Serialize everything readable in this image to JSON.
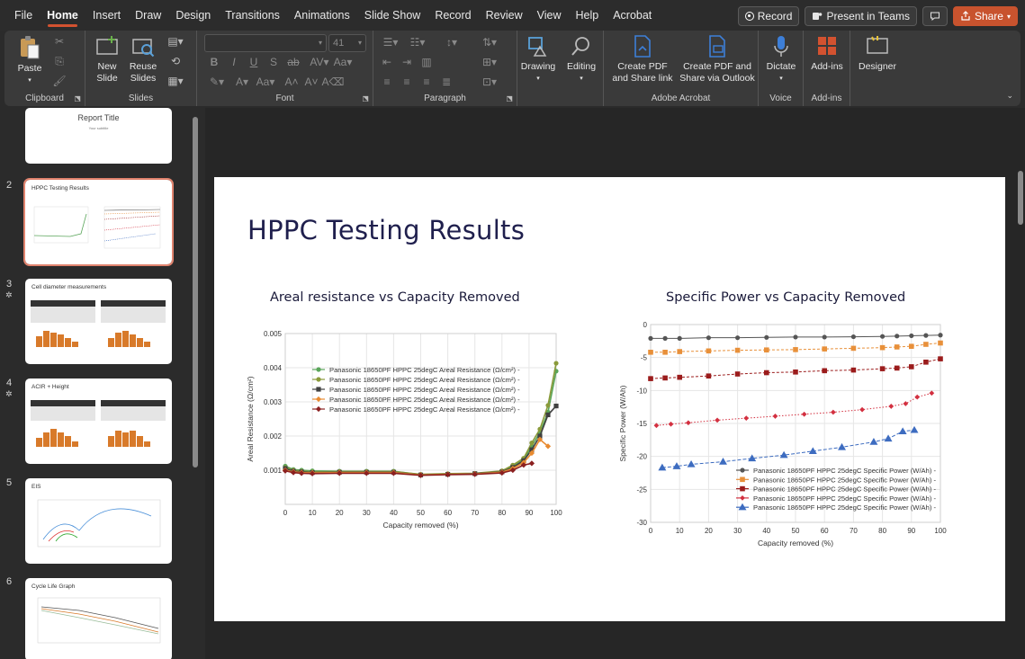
{
  "menu": {
    "tabs": [
      "File",
      "Home",
      "Insert",
      "Draw",
      "Design",
      "Transitions",
      "Animations",
      "Slide Show",
      "Record",
      "Review",
      "View",
      "Help",
      "Acrobat"
    ],
    "active": "Home",
    "record_label": "Record",
    "present_label": "Present in Teams",
    "share_label": "Share"
  },
  "ribbon": {
    "clipboard": {
      "label": "Clipboard",
      "paste": "Paste"
    },
    "slides": {
      "label": "Slides",
      "new_slide": "New\nSlide",
      "reuse": "Reuse\nSlides"
    },
    "font": {
      "label": "Font",
      "size": "41"
    },
    "paragraph": {
      "label": "Paragraph"
    },
    "drawing": {
      "label": "Drawing"
    },
    "editing": {
      "label": "Editing"
    },
    "acrobat": {
      "label": "Adobe Acrobat",
      "create_pdf": "Create PDF\nand Share link",
      "create_pdf_outlook": "Create PDF and\nShare via Outlook"
    },
    "voice": {
      "label": "Voice",
      "dictate": "Dictate"
    },
    "addins": {
      "label": "Add-ins",
      "addins": "Add-ins"
    },
    "designer": {
      "label": "Designer"
    }
  },
  "thumbnails": [
    {
      "num": "",
      "title": "Report Title",
      "subtitle": "Your subtitle"
    },
    {
      "num": "2",
      "title": "HPPC Testing Results"
    },
    {
      "num": "3",
      "title": "Cell diameter measurements"
    },
    {
      "num": "4",
      "title": "ACIR + Height"
    },
    {
      "num": "5",
      "title": "EIS"
    },
    {
      "num": "6",
      "title": "Cycle Life Graph"
    }
  ],
  "slide": {
    "title": "HPPC Testing Results"
  },
  "colors": {
    "accent": "#d35230",
    "green": "#5aa55a",
    "olive": "#8a9a3a",
    "dark": "#404040",
    "orange": "#e88a30",
    "darkred": "#8b2020",
    "gray": "#555555",
    "lightorange": "#e8903a",
    "red": "#9b1c1c",
    "crimson": "#d33040",
    "blue": "#3d6cc0"
  },
  "chart_data": [
    {
      "type": "line",
      "title": "Areal resistance vs Capacity Removed",
      "xlabel": "Capacity removed (%)",
      "ylabel": "Areal Resistance (Ω/cm²)",
      "xlim": [
        0,
        100
      ],
      "ylim": [
        0,
        0.005
      ],
      "xticks": [
        0,
        10,
        20,
        30,
        40,
        50,
        60,
        70,
        80,
        90,
        100
      ],
      "yticks": [
        0.001,
        0.002,
        0.003,
        0.004,
        0.005
      ],
      "ytick_labels": [
        "0.001",
        "0.002",
        "0.003",
        "0.004",
        "0.005"
      ],
      "grid": true,
      "legend": "top-left",
      "series": [
        {
          "name": "Panasonic 18650PF HPPC 25degC Areal Resistance (Ω/cm²) -",
          "marker": "circle",
          "color": "#5aa55a",
          "x": [
            0,
            3,
            6,
            10,
            20,
            30,
            40,
            50,
            60,
            70,
            80,
            84,
            88,
            91,
            94,
            97,
            100
          ],
          "y": [
            0.00112,
            0.00102,
            0.001,
            0.00098,
            0.00097,
            0.00097,
            0.00097,
            0.00087,
            0.00089,
            0.0009,
            0.00097,
            0.00112,
            0.0013,
            0.0017,
            0.0021,
            0.0027,
            0.0039
          ]
        },
        {
          "name": "Panasonic 18650PF HPPC 25degC Areal Resistance (Ω/cm²) -",
          "marker": "circle",
          "color": "#8a9a3a",
          "x": [
            0,
            3,
            6,
            10,
            20,
            30,
            40,
            50,
            60,
            70,
            80,
            84,
            88,
            91,
            94,
            97,
            100
          ],
          "y": [
            0.00108,
            0.001,
            0.00097,
            0.00095,
            0.00096,
            0.00096,
            0.00096,
            0.00088,
            0.0009,
            0.00091,
            0.00098,
            0.00115,
            0.00135,
            0.0018,
            0.0022,
            0.0029,
            0.00413
          ]
        },
        {
          "name": "Panasonic 18650PF HPPC 25degC Areal Resistance (Ω/cm²) -",
          "marker": "square",
          "color": "#404040",
          "x": [
            0,
            3,
            6,
            10,
            20,
            30,
            40,
            50,
            60,
            70,
            80,
            84,
            88,
            91,
            94,
            97,
            100
          ],
          "y": [
            0.00105,
            0.00097,
            0.00095,
            0.00093,
            0.00094,
            0.00094,
            0.00094,
            0.00086,
            0.00088,
            0.0009,
            0.00095,
            0.00108,
            0.00128,
            0.0016,
            0.002,
            0.00262,
            0.00288
          ]
        },
        {
          "name": "Panasonic 18650PF HPPC 25degC Areal Resistance (Ω/cm²) -",
          "marker": "diamond",
          "color": "#e88a30",
          "x": [
            0,
            3,
            6,
            10,
            20,
            30,
            40,
            50,
            60,
            70,
            80,
            84,
            88,
            91,
            94,
            97
          ],
          "y": [
            0.001,
            0.00095,
            0.00093,
            0.00092,
            0.00093,
            0.00093,
            0.00093,
            0.00086,
            0.00088,
            0.00089,
            0.00094,
            0.00105,
            0.00122,
            0.0015,
            0.0019,
            0.0017
          ]
        },
        {
          "name": "Panasonic 18650PF HPPC 25degC Areal Resistance (Ω/cm²) -",
          "marker": "diamond",
          "color": "#8b2020",
          "x": [
            0,
            3,
            6,
            10,
            20,
            30,
            40,
            50,
            60,
            70,
            80,
            84,
            88,
            91
          ],
          "y": [
            0.00098,
            0.00093,
            0.00091,
            0.0009,
            0.00091,
            0.00091,
            0.00091,
            0.00085,
            0.00087,
            0.00088,
            0.00092,
            0.001,
            0.00115,
            0.0012
          ]
        }
      ]
    },
    {
      "type": "line",
      "title": "Specific Power vs Capacity Removed",
      "xlabel": "Capacity removed (%)",
      "ylabel": "Specific Power (W/Ah)",
      "xlim": [
        0,
        100
      ],
      "ylim": [
        -30,
        0
      ],
      "xticks": [
        0,
        10,
        20,
        30,
        40,
        50,
        60,
        70,
        80,
        90,
        100
      ],
      "yticks": [
        0,
        -5,
        -10,
        -15,
        -20,
        -25,
        -30
      ],
      "grid": true,
      "legend": "bottom-right",
      "series": [
        {
          "name": "Panasonic 18650PF HPPC 25degC Specific Power (W/Ah) -",
          "marker": "circle",
          "color": "#555555",
          "x": [
            0,
            5,
            10,
            20,
            30,
            40,
            50,
            60,
            70,
            80,
            85,
            90,
            95,
            100
          ],
          "y": [
            -2.1,
            -2.1,
            -2.1,
            -2.0,
            -2.0,
            -1.95,
            -1.9,
            -1.9,
            -1.85,
            -1.8,
            -1.75,
            -1.7,
            -1.65,
            -1.6
          ]
        },
        {
          "name": "Panasonic 18650PF HPPC 25degC Specific Power (W/Ah) -",
          "marker": "square",
          "color": "#e8903a",
          "x": [
            0,
            5,
            10,
            20,
            30,
            40,
            50,
            60,
            70,
            80,
            85,
            90,
            95,
            100
          ],
          "y": [
            -4.2,
            -4.2,
            -4.1,
            -4.0,
            -3.9,
            -3.85,
            -3.8,
            -3.7,
            -3.6,
            -3.5,
            -3.4,
            -3.3,
            -3.0,
            -2.8
          ]
        },
        {
          "name": "Panasonic 18650PF HPPC 25degC Specific Power (W/Ah) -",
          "marker": "square",
          "color": "#9b1c1c",
          "x": [
            0,
            5,
            10,
            20,
            30,
            40,
            50,
            60,
            70,
            80,
            85,
            90,
            95,
            100
          ],
          "y": [
            -8.2,
            -8.1,
            -8.0,
            -7.8,
            -7.5,
            -7.3,
            -7.2,
            -7.0,
            -6.9,
            -6.7,
            -6.6,
            -6.4,
            -5.7,
            -5.2
          ]
        },
        {
          "name": "Panasonic 18650PF HPPC 25degC Specific Power (W/Ah) -",
          "marker": "diamond",
          "color": "#d33040",
          "x": [
            2,
            7,
            13,
            23,
            33,
            43,
            53,
            63,
            73,
            83,
            88,
            92,
            97
          ],
          "y": [
            -15.3,
            -15.1,
            -14.9,
            -14.5,
            -14.2,
            -13.9,
            -13.6,
            -13.3,
            -12.9,
            -12.4,
            -12.0,
            -11.0,
            -10.4
          ]
        },
        {
          "name": "Panasonic 18650PF HPPC 25degC Specific Power (W/Ah) -",
          "marker": "triangle",
          "color": "#3d6cc0",
          "x": [
            4,
            9,
            14,
            25,
            35,
            46,
            56,
            66,
            77,
            82,
            87,
            91
          ],
          "y": [
            -21.7,
            -21.5,
            -21.2,
            -20.8,
            -20.3,
            -19.8,
            -19.2,
            -18.6,
            -17.8,
            -17.3,
            -16.2,
            -16.0
          ]
        }
      ]
    }
  ]
}
